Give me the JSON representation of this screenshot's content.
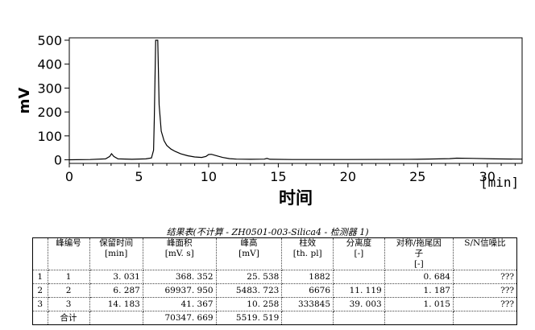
{
  "chart_data": {
    "type": "line",
    "title": "",
    "xlabel": "时间",
    "xunit": "[min]",
    "ylabel": "mV",
    "xlim": [
      0,
      32.5
    ],
    "ylim": [
      -15,
      510
    ],
    "x_ticks": [
      "0",
      "5",
      "10",
      "15",
      "20",
      "25",
      "30"
    ],
    "y_ticks": [
      "0",
      "100",
      "200",
      "300",
      "400",
      "500"
    ],
    "series": [
      {
        "x": [
          0,
          1.5,
          2.6,
          2.9,
          3.03,
          3.2,
          3.5,
          4.5,
          5.5,
          5.9,
          6.05,
          6.1,
          6.2,
          6.287,
          6.35,
          6.45,
          6.6,
          6.8,
          7.0,
          7.3,
          7.6,
          8.0,
          8.5,
          9.0,
          9.5,
          9.8,
          10.0,
          10.2,
          10.5,
          11.0,
          11.5,
          12.0,
          13.0,
          14.0,
          14.183,
          14.4,
          16,
          20,
          25,
          27.3,
          27.8,
          29,
          30.5,
          32.5
        ],
        "y": [
          0,
          1,
          4,
          14,
          25.5,
          14,
          4,
          2,
          4,
          8,
          40,
          170,
          500,
          500,
          500,
          230,
          120,
          80,
          60,
          45,
          35,
          25,
          17,
          12,
          10,
          14,
          22,
          23,
          18,
          10,
          5,
          3,
          2,
          3,
          6,
          2,
          1,
          1,
          2,
          5,
          7,
          6,
          4,
          3
        ]
      }
    ]
  },
  "table": {
    "title": "结果表(不计算 - ZH0501-003-Silica4 - 检测器 1)",
    "headers": [
      "",
      "峰编号",
      "保留时间\n[min]",
      "峰面积\n[mV. s]",
      "峰高\n[mV]",
      "柱效\n[th. pl]",
      "分离度\n[-]",
      "对称/拖尾因\n子\n[-]",
      "S/N信噪比"
    ],
    "rows": [
      [
        "1",
        "1",
        "3. 031",
        "368. 352",
        "25. 538",
        "1882",
        "",
        "0. 684",
        "???"
      ],
      [
        "2",
        "2",
        "6. 287",
        "69937. 950",
        "5483. 723",
        "6676",
        "11. 119",
        "1. 187",
        "???"
      ],
      [
        "3",
        "3",
        "14. 183",
        "41. 367",
        "10. 258",
        "333845",
        "39. 003",
        "1. 015",
        "???"
      ]
    ],
    "total": [
      "",
      "合计",
      "",
      "70347. 669",
      "5519. 519",
      "",
      "",
      "",
      ""
    ]
  }
}
